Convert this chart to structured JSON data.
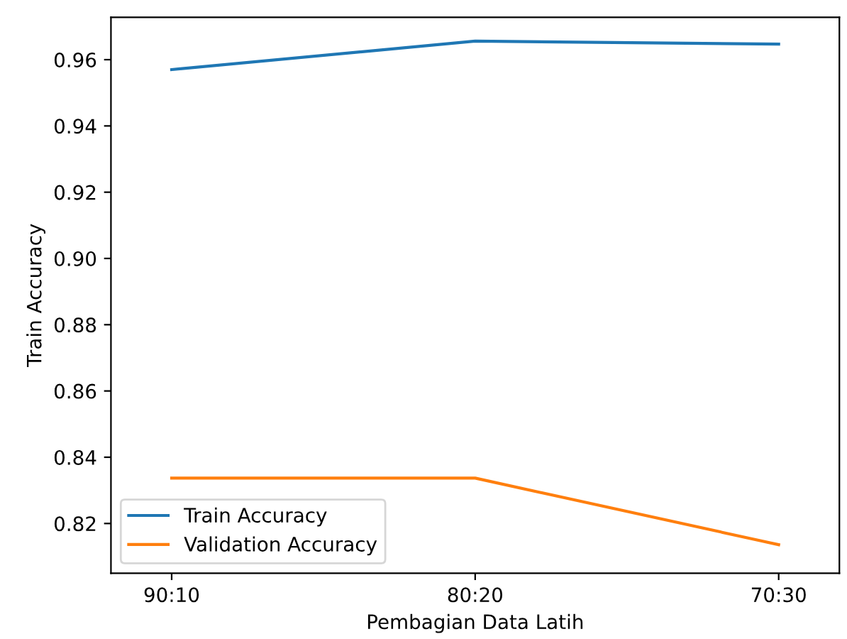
{
  "chart_data": {
    "type": "line",
    "xlabel": "Pembagian Data Latih",
    "ylabel": "Train Accuracy",
    "categories": [
      "90:10",
      "80:20",
      "70:30"
    ],
    "series": [
      {
        "name": "Train Accuracy",
        "color": "#1f77b4",
        "values": [
          0.957,
          0.9656,
          0.9647
        ]
      },
      {
        "name": "Validation Accuracy",
        "color": "#ff7f0e",
        "values": [
          0.8337,
          0.8337,
          0.8136
        ]
      }
    ],
    "ylim": [
      0.805,
      0.9728
    ],
    "yticks": [
      {
        "value": 0.82,
        "label": "0.82"
      },
      {
        "value": 0.84,
        "label": "0.84"
      },
      {
        "value": 0.86,
        "label": "0.86"
      },
      {
        "value": 0.88,
        "label": "0.88"
      },
      {
        "value": 0.9,
        "label": "0.90"
      },
      {
        "value": 0.92,
        "label": "0.92"
      },
      {
        "value": 0.94,
        "label": "0.94"
      },
      {
        "value": 0.96,
        "label": "0.96"
      }
    ],
    "legend": "bottom left",
    "grid": false
  }
}
